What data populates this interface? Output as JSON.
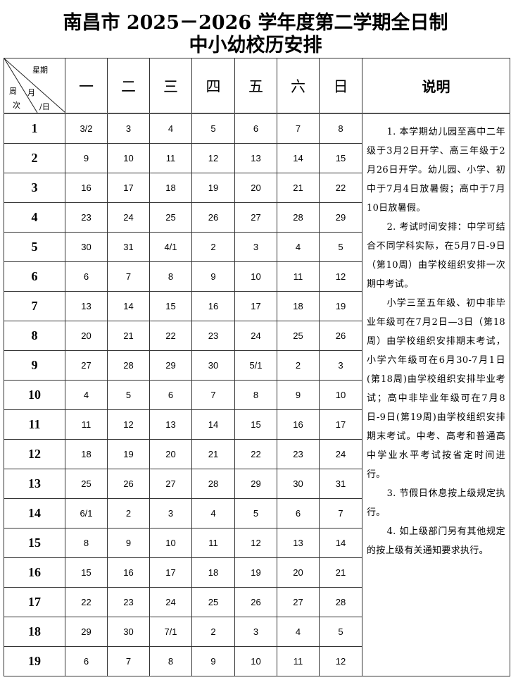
{
  "title_line1": "南昌市 2025－2026 学年度第二学期全日制",
  "title_line2": "中小幼校历安排",
  "corner": {
    "weekday": "星期",
    "week": "周",
    "week2": "次",
    "month": "月",
    "day": "/日"
  },
  "weekdays": [
    "一",
    "二",
    "三",
    "四",
    "五",
    "六",
    "日"
  ],
  "notes_header": "说明",
  "rows": [
    {
      "week": "1",
      "days": [
        "3/2",
        "3",
        "4",
        "5",
        "6",
        "7",
        "8"
      ]
    },
    {
      "week": "2",
      "days": [
        "9",
        "10",
        "11",
        "12",
        "13",
        "14",
        "15"
      ]
    },
    {
      "week": "3",
      "days": [
        "16",
        "17",
        "18",
        "19",
        "20",
        "21",
        "22"
      ]
    },
    {
      "week": "4",
      "days": [
        "23",
        "24",
        "25",
        "26",
        "27",
        "28",
        "29"
      ]
    },
    {
      "week": "5",
      "days": [
        "30",
        "31",
        "4/1",
        "2",
        "3",
        "4",
        "5"
      ]
    },
    {
      "week": "6",
      "days": [
        "6",
        "7",
        "8",
        "9",
        "10",
        "11",
        "12"
      ]
    },
    {
      "week": "7",
      "days": [
        "13",
        "14",
        "15",
        "16",
        "17",
        "18",
        "19"
      ]
    },
    {
      "week": "8",
      "days": [
        "20",
        "21",
        "22",
        "23",
        "24",
        "25",
        "26"
      ]
    },
    {
      "week": "9",
      "days": [
        "27",
        "28",
        "29",
        "30",
        "5/1",
        "2",
        "3"
      ]
    },
    {
      "week": "10",
      "days": [
        "4",
        "5",
        "6",
        "7",
        "8",
        "9",
        "10"
      ]
    },
    {
      "week": "11",
      "days": [
        "11",
        "12",
        "13",
        "14",
        "15",
        "16",
        "17"
      ]
    },
    {
      "week": "12",
      "days": [
        "18",
        "19",
        "20",
        "21",
        "22",
        "23",
        "24"
      ]
    },
    {
      "week": "13",
      "days": [
        "25",
        "26",
        "27",
        "28",
        "29",
        "30",
        "31"
      ]
    },
    {
      "week": "14",
      "days": [
        "6/1",
        "2",
        "3",
        "4",
        "5",
        "6",
        "7"
      ]
    },
    {
      "week": "15",
      "days": [
        "8",
        "9",
        "10",
        "11",
        "12",
        "13",
        "14"
      ]
    },
    {
      "week": "16",
      "days": [
        "15",
        "16",
        "17",
        "18",
        "19",
        "20",
        "21"
      ]
    },
    {
      "week": "17",
      "days": [
        "22",
        "23",
        "24",
        "25",
        "26",
        "27",
        "28"
      ]
    },
    {
      "week": "18",
      "days": [
        "29",
        "30",
        "7/1",
        "2",
        "3",
        "4",
        "5"
      ]
    },
    {
      "week": "19",
      "days": [
        "6",
        "7",
        "8",
        "9",
        "10",
        "11",
        "12"
      ]
    }
  ],
  "notes": [
    "1. 本学期幼儿园至高中二年级于3月2日开学、高三年级于2月26日开学。幼儿园、小学、初中于7月4日放暑假；高中于7月10日放暑假。",
    "2. 考试时间安排：中学可结合不同学科实际，在5月7日-9日（第10周）由学校组织安排一次期中考试。",
    "小学三至五年级、初中非毕业年级可在7月2日—3日（第18周）由学校组织安排期末考试，小学六年级可在6月30-7月1日(第18周)由学校组织安排毕业考试；高中非毕业年级可在7月8日-9日(第19周)由学校组织安排期末考试。中考、高考和普通高中学业水平考试按省定时间进行。",
    "3. 节假日休息按上级规定执行。",
    "4. 如上级部门另有其他规定的按上级有关通知要求执行。"
  ]
}
